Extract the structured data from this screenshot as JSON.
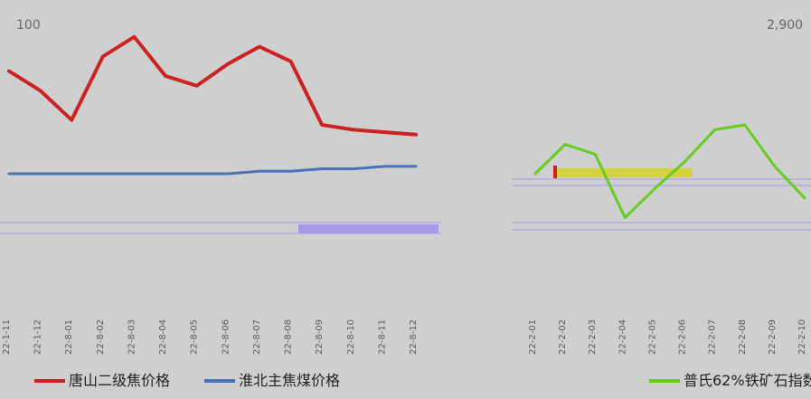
{
  "chart_data": [
    {
      "type": "line",
      "y_axis_ticks_visible": [
        "100"
      ],
      "x": [
        "22-1-11",
        "22-1-12",
        "22-8-01",
        "22-8-02",
        "22-8-03",
        "22-8-04",
        "22-8-05",
        "22-8-06",
        "22-8-07",
        "22-8-08",
        "22-8-09",
        "22-8-10",
        "22-8-11",
        "22-8-12"
      ],
      "series": [
        {
          "name": "唐山二级焦价格",
          "color": "#cc2222",
          "values": [
            82,
            74,
            62,
            88,
            96,
            80,
            76,
            85,
            92,
            86,
            60,
            58,
            57,
            56
          ]
        },
        {
          "name": "淮北主焦煤价格",
          "color": "#4a72b8",
          "values": [
            40,
            40,
            40,
            40,
            40,
            40,
            40,
            40,
            41,
            41,
            42,
            42,
            43,
            43
          ]
        }
      ]
    },
    {
      "type": "line",
      "y_axis_ticks_visible": [
        "2,900"
      ],
      "x": [
        "22-2-01",
        "22-2-02",
        "22-2-03",
        "22-2-04",
        "22-2-05",
        "22-2-06",
        "22-2-07",
        "22-2-08",
        "22-2-09",
        "22-2-10"
      ],
      "series": [
        {
          "name": "普氏62%铁矿石指数",
          "color": "#66cc22",
          "values": [
            2300,
            2420,
            2380,
            2120,
            2240,
            2350,
            2480,
            2500,
            2330,
            2200
          ]
        }
      ]
    }
  ],
  "colors": {
    "red": "#cc2222",
    "blue": "#4a72b8",
    "green": "#66cc22",
    "purple": "#a898e6",
    "yellow": "#d4d43a"
  },
  "legend": {
    "items": [
      "唐山二级焦价格",
      "淮北主焦煤价格",
      "普氏62%铁矿石指数"
    ]
  }
}
